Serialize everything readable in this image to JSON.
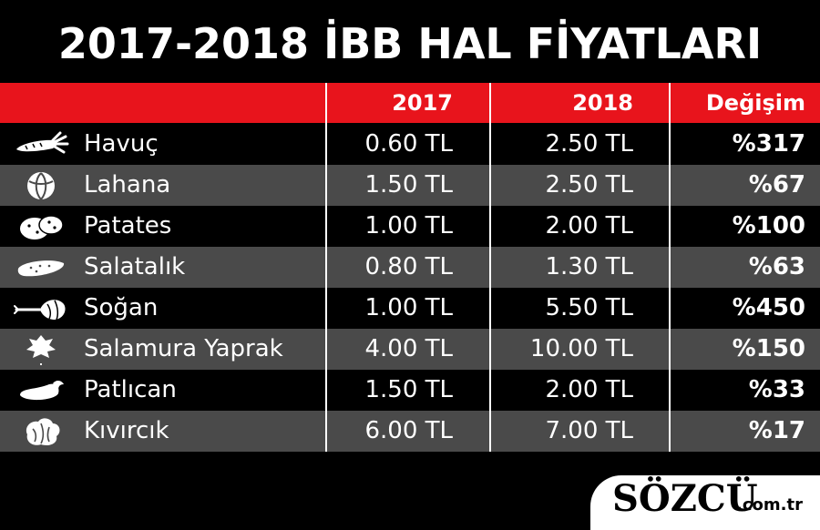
{
  "title": "2017-2018 İBB HAL FİYATLARI",
  "chart_data": {
    "type": "table",
    "columns": [
      "",
      "2017",
      "2018",
      "Değişim"
    ],
    "rows": [
      {
        "icon": "carrot-icon",
        "name": "Havuç",
        "v2017": "0.60 TL",
        "v2018": "2.50 TL",
        "change": "%317"
      },
      {
        "icon": "cabbage-icon",
        "name": "Lahana",
        "v2017": "1.50 TL",
        "v2018": "2.50 TL",
        "change": "%67"
      },
      {
        "icon": "potato-icon",
        "name": "Patates",
        "v2017": "1.00 TL",
        "v2018": "2.00 TL",
        "change": "%100"
      },
      {
        "icon": "cucumber-icon",
        "name": "Salatalık",
        "v2017": "0.80 TL",
        "v2018": "1.30 TL",
        "change": "%63"
      },
      {
        "icon": "onion-icon",
        "name": "Soğan",
        "v2017": "1.00 TL",
        "v2018": "5.50 TL",
        "change": "%450"
      },
      {
        "icon": "leaf-icon",
        "name": "Salamura Yaprak",
        "v2017": "4.00 TL",
        "v2018": "10.00 TL",
        "change": "%150"
      },
      {
        "icon": "eggplant-icon",
        "name": "Patlıcan",
        "v2017": "1.50 TL",
        "v2018": "2.00 TL",
        "change": "%33"
      },
      {
        "icon": "lettuce-icon",
        "name": "Kıvırcık",
        "v2017": "6.00 TL",
        "v2018": "7.00 TL",
        "change": "%17"
      }
    ]
  },
  "logo": {
    "main": "SÖZCÜ",
    "sub": ".com.tr"
  },
  "colors": {
    "header": "#e8141c",
    "row_dark": "#000000",
    "row_gray": "#4a4a4a",
    "text": "#ffffff"
  }
}
